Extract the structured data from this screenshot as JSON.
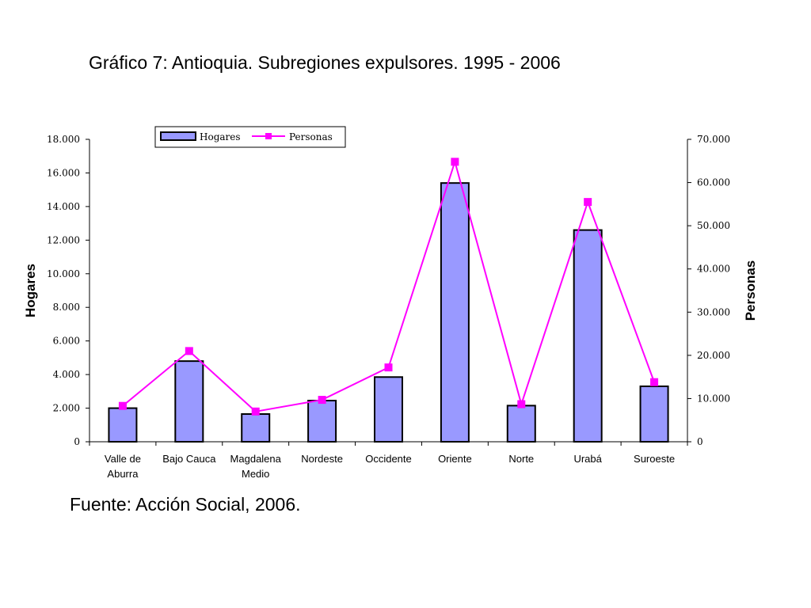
{
  "title": "Gráfico 7: Antioquia. Subregiones expulsores. 1995 - 2006",
  "source": "Fuente: Acción Social, 2006.",
  "chart_data": {
    "type": "bar",
    "categories": [
      [
        "Valle de",
        "Aburra"
      ],
      [
        "Bajo Cauca"
      ],
      [
        "Magdalena",
        "Medio"
      ],
      [
        "Nordeste"
      ],
      [
        "Occidente"
      ],
      [
        "Oriente"
      ],
      [
        "Norte"
      ],
      [
        "Urabá"
      ],
      [
        "Suroeste"
      ]
    ],
    "series": [
      {
        "name": "Hogares",
        "type": "bar",
        "axis": "left",
        "color": "#9999ff",
        "values": [
          2000,
          4800,
          1650,
          2450,
          3850,
          15400,
          2150,
          12600,
          3300
        ]
      },
      {
        "name": "Personas",
        "type": "line",
        "axis": "right",
        "color": "#ff00ff",
        "values": [
          8300,
          21000,
          7000,
          9700,
          17200,
          64800,
          8700,
          55500,
          13800
        ]
      }
    ],
    "ylabel_left": "Hogares",
    "ylabel_right": "Personas",
    "ylim_left": [
      0,
      18000
    ],
    "ylim_right": [
      0,
      70000
    ],
    "yticks_left": [
      "0",
      "2.000",
      "4.000",
      "6.000",
      "8.000",
      "10.000",
      "12.000",
      "14.000",
      "16.000",
      "18.000"
    ],
    "yticks_right": [
      "0",
      "10.000",
      "20.000",
      "30.000",
      "40.000",
      "50.000",
      "60.000",
      "70.000"
    ],
    "grid": false,
    "legend_position": "top-center"
  }
}
